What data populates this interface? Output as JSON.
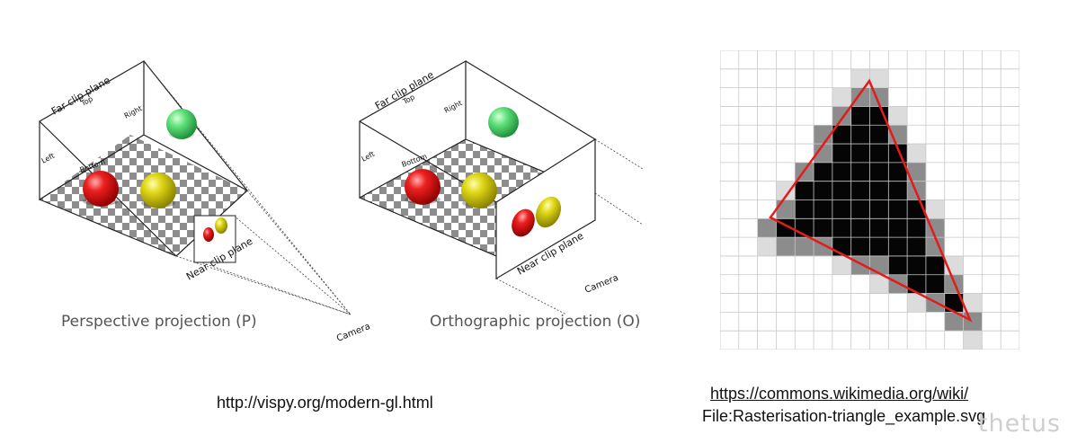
{
  "perspective": {
    "labels": {
      "far_clip_plane": "Far clip plane",
      "top": "Top",
      "right": "Right",
      "left": "Left",
      "bottom": "Bottom",
      "near_clip_plane": "Near clip plane",
      "camera": "Camera"
    },
    "caption": "Perspective projection (P)"
  },
  "orthographic": {
    "labels": {
      "far_clip_plane": "Far clip plane",
      "top": "Top",
      "right": "Right",
      "left": "Left",
      "bottom": "Bottom",
      "near_clip_plane": "Near clip plane",
      "camera": "Camera"
    },
    "caption": "Orthographic projection (O)"
  },
  "sources": {
    "vispy_url": "http://vispy.org/modern-gl.html",
    "wikimedia_url_line1": "https://commons.wikimedia.org/wiki/",
    "wikimedia_url_line2": "File:Rasterisation-triangle_example.svg"
  },
  "watermark": "thetus",
  "colors": {
    "sphere_red": "#e01010",
    "sphere_yellow": "#d8d010",
    "sphere_green": "#3fcf5f",
    "triangle_outline": "#e31b1b"
  }
}
